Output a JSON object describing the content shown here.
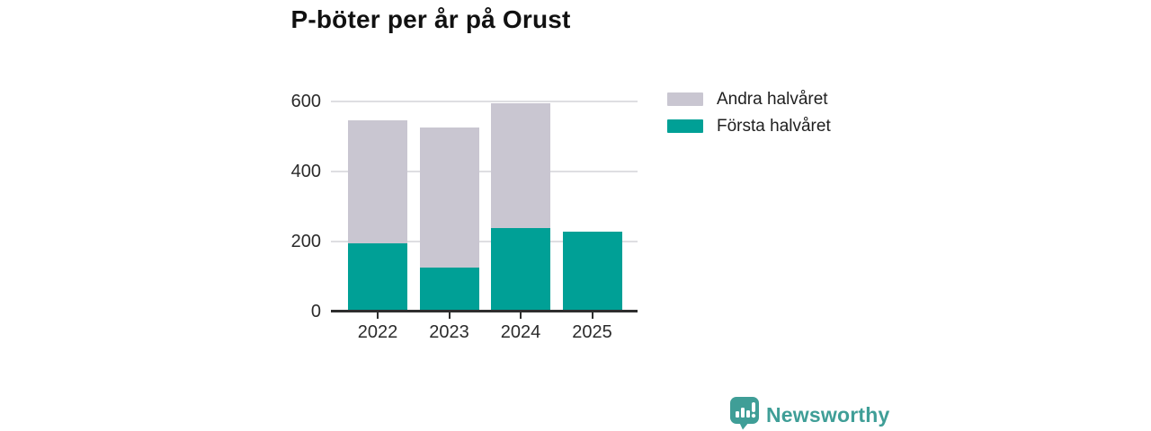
{
  "title": "P-böter per år på Orust",
  "chart_data": {
    "type": "bar",
    "stacked": true,
    "categories": [
      "2022",
      "2023",
      "2024",
      "2025"
    ],
    "series": [
      {
        "name": "Första halvåret",
        "color": "#00a096",
        "values": [
          196,
          125,
          238,
          229
        ]
      },
      {
        "name": "Andra halvåret",
        "color": "#c9c6d1",
        "values": [
          349,
          400,
          358,
          0
        ]
      }
    ],
    "totals": [
      545,
      525,
      596,
      229
    ],
    "xlabel": "",
    "ylabel": "",
    "ylim": [
      0,
      600
    ],
    "yticks": [
      0,
      200,
      400,
      600
    ],
    "grid": "horizontal",
    "legend_position": "right"
  },
  "legend": {
    "items": [
      {
        "label": "Andra halvåret",
        "color": "#c9c6d1"
      },
      {
        "label": "Första halvåret",
        "color": "#00a096"
      }
    ]
  },
  "branding": {
    "name": "Newsworthy",
    "color": "#3f9e97",
    "icon": "newsworthy-speech-bubble-barchart-icon"
  },
  "colors": {
    "axis": "#2e2e2e",
    "gridline": "#dedee2",
    "tick_text": "#2b2b2b",
    "title_text": "#111111",
    "background": "#ffffff"
  }
}
